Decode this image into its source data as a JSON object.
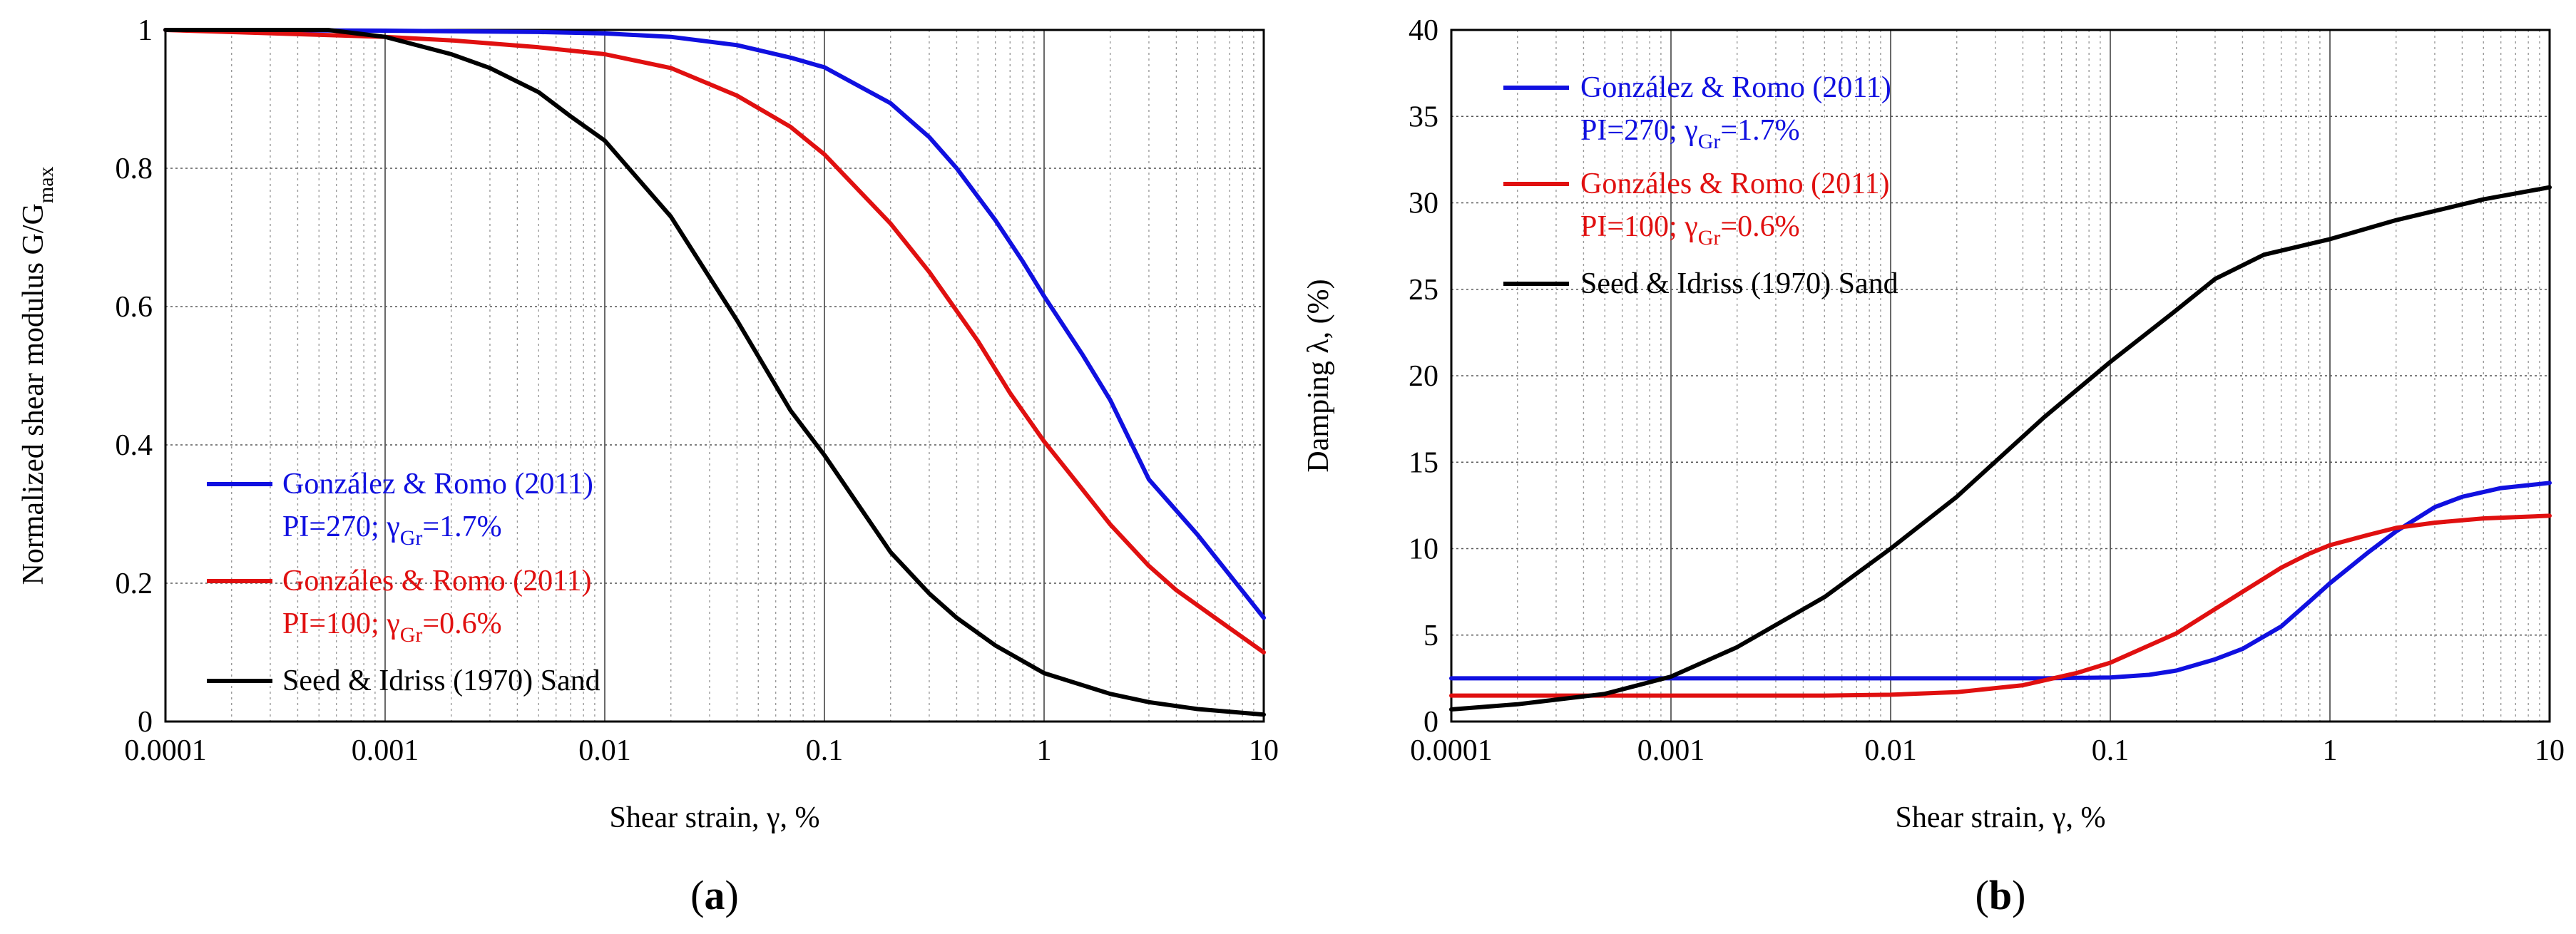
{
  "panels": [
    {
      "caption_open": "(",
      "caption_letter": "a",
      "caption_close": ")",
      "chart_data": {
        "type": "line",
        "xscale": "log",
        "xlim": [
          0.0001,
          10
        ],
        "ylim": [
          0,
          1
        ],
        "xticks": [
          0.0001,
          0.001,
          0.01,
          0.1,
          1,
          10
        ],
        "xtick_labels": [
          "0.0001",
          "0.001",
          "0.01",
          "0.1",
          "1",
          "10"
        ],
        "yticks": [
          0,
          0.2,
          0.4,
          0.6,
          0.8,
          1
        ],
        "ytick_labels": [
          "0",
          "0.2",
          "0.4",
          "0.6",
          "0.8",
          "1"
        ],
        "xlabel": "Shear strain, γ, %",
        "ylabel_main": "Normalized shear modulus G/G",
        "ylabel_sub": "max",
        "legend_position": "bottom-left",
        "series": [
          {
            "name": "González & Romo (2011)",
            "detail_pre": "PI=270; γ",
            "detail_sub": "Gr",
            "detail_post": "=1.7%",
            "color": "#1010e0",
            "x": [
              0.0001,
              0.001,
              0.002,
              0.005,
              0.01,
              0.02,
              0.04,
              0.07,
              0.1,
              0.2,
              0.3,
              0.4,
              0.6,
              0.8,
              1,
              1.5,
              2,
              3,
              5,
              10
            ],
            "y": [
              1.0,
              0.999,
              0.998,
              0.997,
              0.995,
              0.99,
              0.978,
              0.96,
              0.946,
              0.894,
              0.845,
              0.8,
              0.725,
              0.665,
              0.615,
              0.53,
              0.465,
              0.35,
              0.27,
              0.15
            ]
          },
          {
            "name": "Gonzáles & Romo (2011)",
            "detail_pre": "PI=100; γ",
            "detail_sub": "Gr",
            "detail_post": "=0.6%",
            "color": "#e01010",
            "x": [
              0.0001,
              0.001,
              0.002,
              0.005,
              0.01,
              0.02,
              0.04,
              0.07,
              0.1,
              0.2,
              0.3,
              0.5,
              0.7,
              1,
              1.5,
              2,
              3,
              4,
              6,
              10
            ],
            "y": [
              1.0,
              0.99,
              0.985,
              0.975,
              0.965,
              0.945,
              0.905,
              0.86,
              0.82,
              0.72,
              0.65,
              0.55,
              0.475,
              0.405,
              0.335,
              0.285,
              0.225,
              0.19,
              0.15,
              0.1
            ]
          },
          {
            "name": "Seed & Idriss (1970) Sand",
            "color": "#000000",
            "x": [
              0.0001,
              0.00055,
              0.001,
              0.002,
              0.003,
              0.005,
              0.007,
              0.01,
              0.02,
              0.04,
              0.07,
              0.1,
              0.2,
              0.3,
              0.4,
              0.6,
              1,
              2,
              3,
              5,
              10
            ],
            "y": [
              1.0,
              1.0,
              0.99,
              0.965,
              0.945,
              0.91,
              0.875,
              0.84,
              0.73,
              0.58,
              0.45,
              0.385,
              0.245,
              0.185,
              0.15,
              0.11,
              0.07,
              0.04,
              0.028,
              0.018,
              0.01
            ]
          }
        ]
      }
    },
    {
      "caption_open": "(",
      "caption_letter": "b",
      "caption_close": ")",
      "chart_data": {
        "type": "line",
        "xscale": "log",
        "xlim": [
          0.0001,
          10
        ],
        "ylim": [
          0,
          40
        ],
        "xticks": [
          0.0001,
          0.001,
          0.01,
          0.1,
          1,
          10
        ],
        "xtick_labels": [
          "0.0001",
          "0.001",
          "0.01",
          "0.1",
          "1",
          "10"
        ],
        "yticks": [
          0,
          5,
          10,
          15,
          20,
          25,
          30,
          35,
          40
        ],
        "ytick_labels": [
          "0",
          "5",
          "10",
          "15",
          "20",
          "25",
          "30",
          "35",
          "40"
        ],
        "xlabel": "Shear strain, γ, %",
        "ylabel_main": "Damping λ, (%)",
        "ylabel_sub": "",
        "legend_position": "top-left",
        "series": [
          {
            "name": "González & Romo (2011)",
            "detail_pre": "PI=270; γ",
            "detail_sub": "Gr",
            "detail_post": "=1.7%",
            "color": "#1010e0",
            "x": [
              0.0001,
              0.001,
              0.01,
              0.05,
              0.1,
              0.15,
              0.2,
              0.3,
              0.4,
              0.6,
              0.8,
              1,
              1.5,
              2,
              3,
              4,
              6,
              10
            ],
            "y": [
              2.5,
              2.5,
              2.5,
              2.5,
              2.55,
              2.7,
              2.95,
              3.6,
              4.2,
              5.5,
              6.9,
              8.0,
              9.8,
              11.0,
              12.4,
              13.0,
              13.5,
              13.8
            ]
          },
          {
            "name": "Gonzáles & Romo (2011)",
            "detail_pre": "PI=100; γ",
            "detail_sub": "Gr",
            "detail_post": "=0.6%",
            "color": "#e01010",
            "x": [
              0.0001,
              0.001,
              0.005,
              0.01,
              0.02,
              0.04,
              0.07,
              0.1,
              0.2,
              0.4,
              0.6,
              0.8,
              1,
              1.5,
              2,
              3,
              5,
              10
            ],
            "y": [
              1.5,
              1.5,
              1.5,
              1.55,
              1.7,
              2.1,
              2.8,
              3.4,
              5.1,
              7.5,
              8.9,
              9.7,
              10.2,
              10.8,
              11.2,
              11.5,
              11.75,
              11.9
            ]
          },
          {
            "name": "Seed & Idriss (1970) Sand",
            "color": "#000000",
            "x": [
              0.0001,
              0.0002,
              0.0005,
              0.001,
              0.002,
              0.005,
              0.01,
              0.02,
              0.05,
              0.1,
              0.2,
              0.3,
              0.5,
              1,
              2,
              5,
              10
            ],
            "y": [
              0.7,
              1.0,
              1.6,
              2.6,
              4.3,
              7.2,
              10.0,
              13.0,
              17.6,
              20.8,
              23.8,
              25.6,
              27.0,
              27.9,
              29.0,
              30.2,
              30.9
            ]
          }
        ]
      }
    }
  ]
}
